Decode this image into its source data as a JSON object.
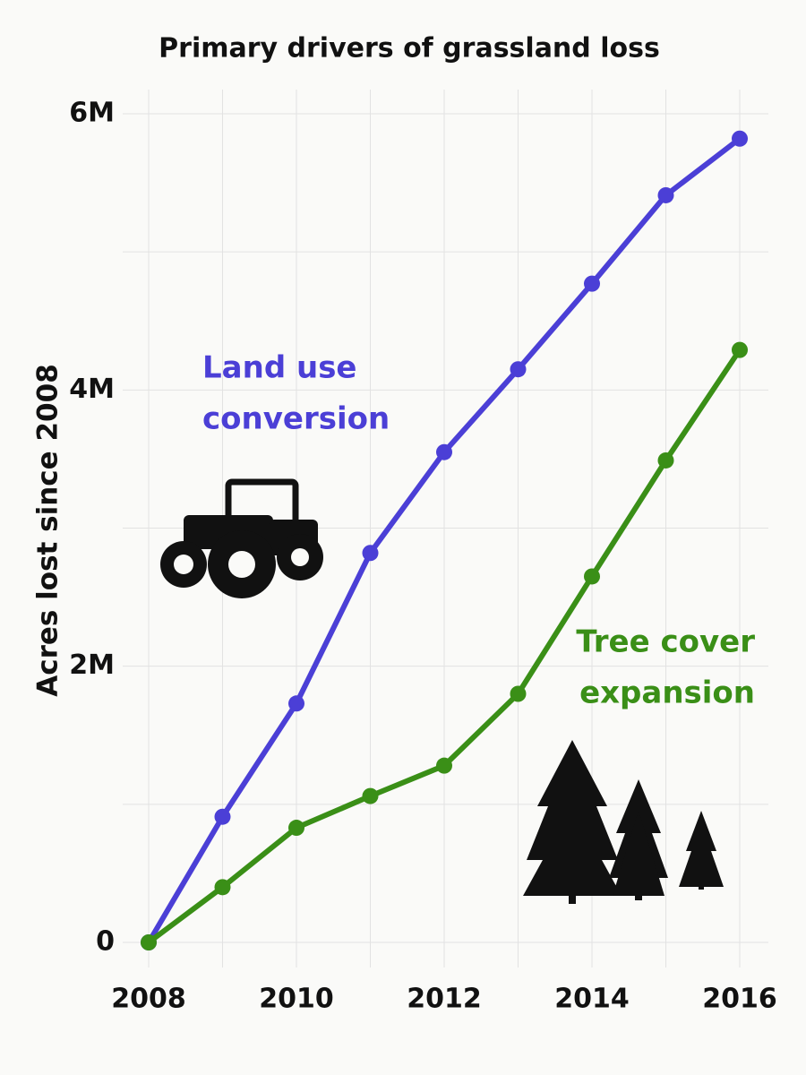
{
  "chart_data": {
    "type": "line",
    "title": "Primary drivers of grassland loss",
    "y_label": "Acres lost since 2008",
    "x": [
      2008,
      2009,
      2010,
      2011,
      2012,
      2013,
      2014,
      2015,
      2016
    ],
    "series": [
      {
        "color": "#4b3fd6",
        "values": [
          0,
          910000,
          1730000,
          2820000,
          3550000,
          4150000,
          4770000,
          5410000,
          5820000
        ]
      },
      {
        "color": "#3a8f17",
        "values": [
          0,
          400000,
          830000,
          1060000,
          1280000,
          1800000,
          2650000,
          3490000,
          4290000
        ]
      }
    ],
    "annotations": [
      {
        "lines": [
          "Land use",
          "conversion"
        ],
        "color": "#4b3fd6"
      },
      {
        "lines": [
          "Tree cover",
          "expansion"
        ],
        "color": "#3a8f17"
      }
    ],
    "xlim": [
      2008,
      2016
    ],
    "xticks": [
      2008,
      2010,
      2012,
      2014,
      2016
    ],
    "xminor": [
      2009,
      2011,
      2013,
      2015
    ],
    "ylim": [
      0,
      6000000
    ],
    "yticks": [
      0,
      {
        "value": 2000000,
        "label": "2M"
      },
      {
        "value": 4000000,
        "label": "4M"
      },
      {
        "value": 6000000,
        "label": "6M"
      }
    ],
    "yminor": [
      1000000,
      3000000,
      5000000
    ],
    "grid": true
  }
}
